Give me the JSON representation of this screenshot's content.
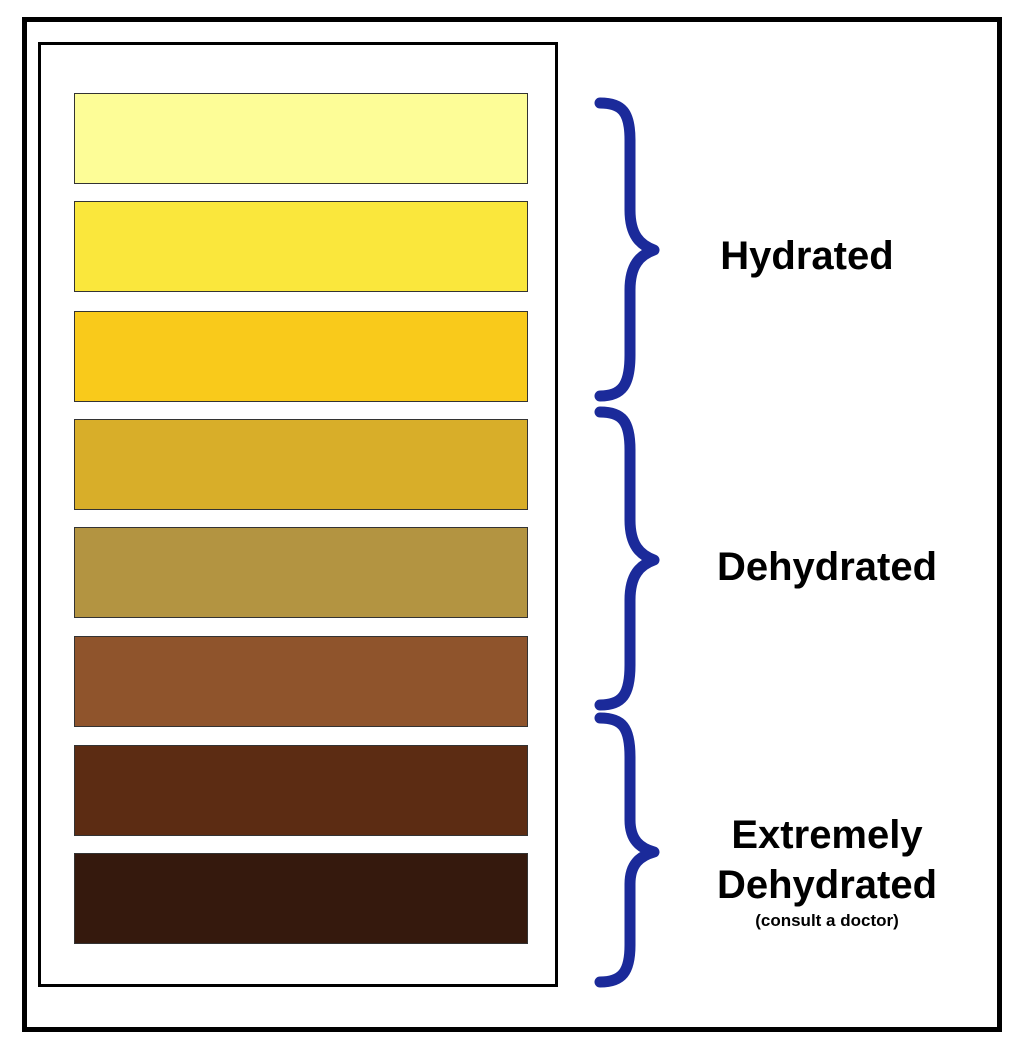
{
  "chart_data": {
    "type": "table",
    "swatches": [
      {
        "color": "#FDFD97"
      },
      {
        "color": "#FAE73C"
      },
      {
        "color": "#F9CA1B"
      },
      {
        "color": "#D8AE29"
      },
      {
        "color": "#B39441"
      },
      {
        "color": "#8F542C"
      },
      {
        "color": "#5C2C13"
      },
      {
        "color": "#35190D"
      }
    ],
    "groups": [
      {
        "label": "Hydrated",
        "swatches": [
          1,
          2,
          3
        ]
      },
      {
        "label": "Dehydrated",
        "swatches": [
          4,
          5,
          6
        ]
      },
      {
        "label_line1": "Extremely",
        "label_line2": "Dehydrated",
        "note": "(consult a doctor)",
        "swatches": [
          7,
          8
        ]
      }
    ]
  },
  "colors": {
    "brace": "#1B2A9A",
    "frame": "#000000",
    "background": "#FFFFFF"
  }
}
